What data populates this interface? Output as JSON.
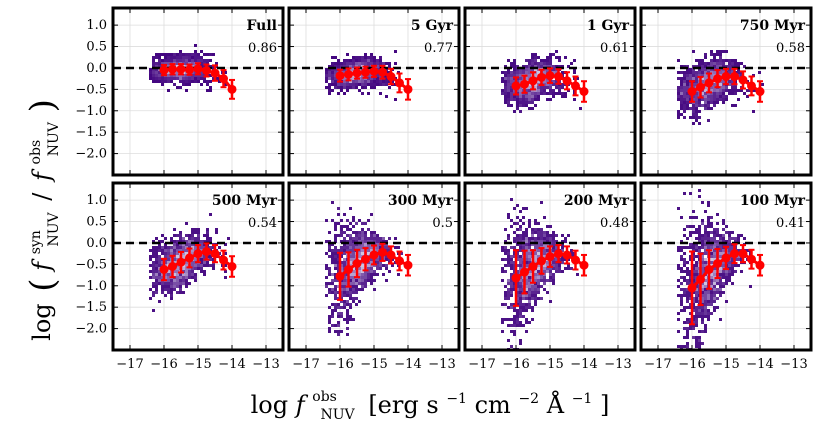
{
  "chart_data": {
    "type": "scatter",
    "title": "",
    "xlabel": "log f_NUV^obs [erg s^-1 cm^-2 Å^-1]",
    "ylabel": "log ( f_NUV^syn / f_NUV^obs )",
    "xlim": [
      -17.5,
      -12.5
    ],
    "ylim": [
      -2.5,
      1.4
    ],
    "xticks": [
      -17,
      -16,
      -15,
      -14,
      -13
    ],
    "xtick_labels": [
      "−17",
      "−16",
      "−15",
      "−14",
      "−13"
    ],
    "yticks": [
      1.0,
      0.5,
      0.0,
      -0.5,
      -1.0,
      -1.5,
      -2.0
    ],
    "ytick_labels": [
      "1.0",
      "0.5",
      "0.0",
      "−0.5",
      "−1.0",
      "−1.5",
      "−2.0"
    ],
    "reference_line_y": 0.0,
    "grid": true,
    "binned_x": [
      -16.0,
      -15.75,
      -15.5,
      -15.25,
      -15.0,
      -14.75,
      -14.5,
      -14.25,
      -14.0
    ],
    "panels": [
      {
        "label": "Full",
        "value": "0.86",
        "medians": [
          -0.05,
          -0.03,
          -0.03,
          -0.04,
          -0.02,
          -0.06,
          -0.12,
          -0.25,
          -0.5
        ],
        "err": [
          0.12,
          0.12,
          0.12,
          0.12,
          0.13,
          0.14,
          0.18,
          0.2,
          0.22
        ]
      },
      {
        "label": "5 Gyr",
        "value": "0.77",
        "medians": [
          -0.18,
          -0.15,
          -0.12,
          -0.1,
          -0.08,
          -0.1,
          -0.2,
          -0.35,
          -0.5
        ],
        "err": [
          0.14,
          0.14,
          0.13,
          0.13,
          0.13,
          0.15,
          0.18,
          0.22,
          0.24
        ]
      },
      {
        "label": "1 Gyr",
        "value": "0.61",
        "medians": [
          -0.42,
          -0.38,
          -0.3,
          -0.22,
          -0.18,
          -0.2,
          -0.3,
          -0.42,
          -0.55
        ],
        "err": [
          0.2,
          0.2,
          0.2,
          0.18,
          0.17,
          0.17,
          0.2,
          0.22,
          0.24
        ]
      },
      {
        "label": "750 Myr",
        "value": "0.58",
        "medians": [
          -0.55,
          -0.45,
          -0.35,
          -0.25,
          -0.2,
          -0.2,
          -0.28,
          -0.42,
          -0.55
        ],
        "err": [
          0.24,
          0.24,
          0.22,
          0.2,
          0.18,
          0.18,
          0.2,
          0.22,
          0.24
        ]
      },
      {
        "label": "500 Myr",
        "value": "0.54",
        "medians": [
          -0.62,
          -0.55,
          -0.45,
          -0.35,
          -0.25,
          -0.2,
          -0.25,
          -0.4,
          -0.55
        ],
        "err": [
          0.25,
          0.25,
          0.24,
          0.22,
          0.2,
          0.19,
          0.2,
          0.22,
          0.24
        ]
      },
      {
        "label": "300 Myr",
        "value": "0.5",
        "medians": [
          -0.78,
          -0.62,
          -0.48,
          -0.38,
          -0.28,
          -0.22,
          -0.28,
          -0.42,
          -0.52
        ],
        "err": [
          0.55,
          0.4,
          0.32,
          0.26,
          0.22,
          0.2,
          0.2,
          0.22,
          0.24
        ]
      },
      {
        "label": "200 Myr",
        "value": "0.48",
        "medians": [
          -0.82,
          -0.68,
          -0.55,
          -0.42,
          -0.32,
          -0.25,
          -0.28,
          -0.4,
          -0.52
        ],
        "err": [
          0.65,
          0.5,
          0.38,
          0.3,
          0.24,
          0.2,
          0.2,
          0.22,
          0.24
        ]
      },
      {
        "label": "100 Myr",
        "value": "0.41",
        "medians": [
          -1.05,
          -0.85,
          -0.62,
          -0.48,
          -0.35,
          -0.25,
          -0.25,
          -0.38,
          -0.52
        ],
        "err": [
          0.85,
          0.6,
          0.45,
          0.34,
          0.26,
          0.22,
          0.2,
          0.22,
          0.24
        ]
      }
    ]
  },
  "colors": {
    "median_marker": "#ff0000",
    "density_dark": "#3f007d",
    "density_light": "#e8e6f3",
    "reference_line": "#000000",
    "grid": "#dddddd"
  }
}
